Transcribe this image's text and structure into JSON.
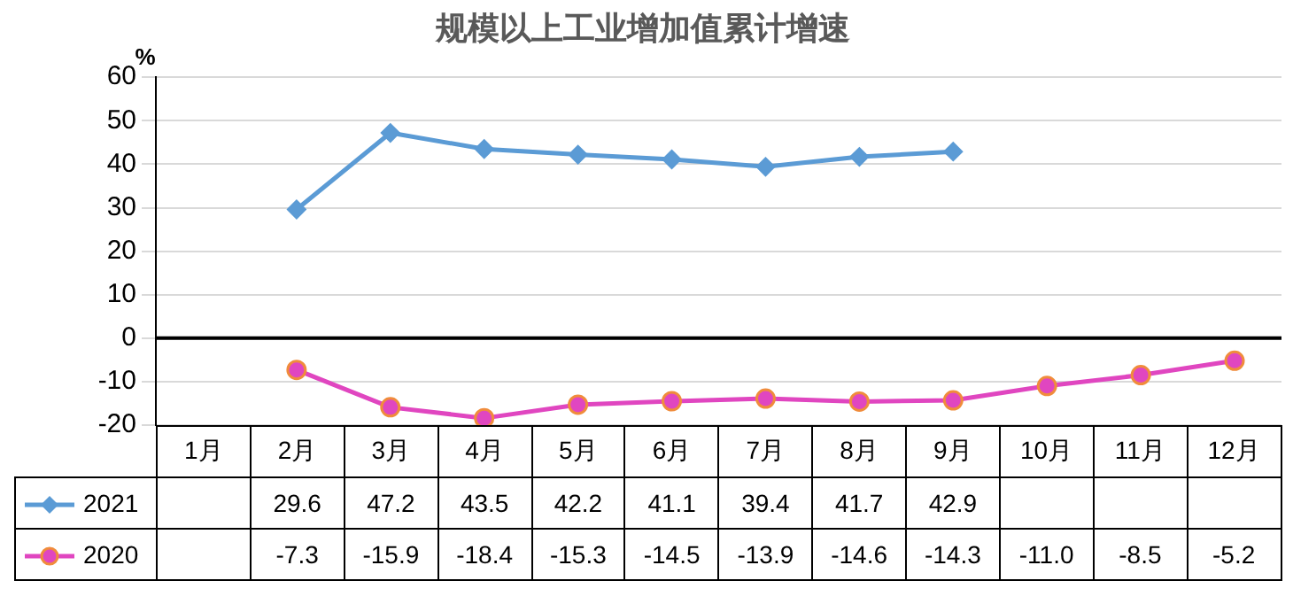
{
  "chart_data": {
    "type": "line",
    "title": "规模以上工业增加值累计增速",
    "ylabel": "%",
    "categories": [
      "1月",
      "2月",
      "3月",
      "4月",
      "5月",
      "6月",
      "7月",
      "8月",
      "9月",
      "10月",
      "11月",
      "12月"
    ],
    "series": [
      {
        "name": "2021",
        "color": "#5b9bd5",
        "marker": "diamond",
        "values": [
          null,
          29.6,
          47.2,
          43.5,
          42.2,
          41.1,
          39.4,
          41.7,
          42.9,
          null,
          null,
          null
        ],
        "value_labels": [
          null,
          "29.6",
          "47.2",
          "43.5",
          "42.2",
          "41.1",
          "39.4",
          "41.7",
          "42.9",
          null,
          null,
          null
        ]
      },
      {
        "name": "2020",
        "color": "#e046c0",
        "marker": "circle",
        "values": [
          null,
          -7.3,
          -15.9,
          -18.4,
          -15.3,
          -14.5,
          -13.9,
          -14.6,
          -14.3,
          -11.0,
          -8.5,
          -5.2
        ],
        "value_labels": [
          null,
          "-7.3",
          "-15.9",
          "-18.4",
          "-15.3",
          "-14.5",
          "-13.9",
          "-14.6",
          "-14.3",
          "-11.0",
          "-8.5",
          "-5.2"
        ]
      }
    ],
    "ylim": [
      -20,
      60
    ],
    "yticks": [
      -20,
      -10,
      0,
      10,
      20,
      30,
      40,
      50,
      60
    ],
    "grid": "y",
    "legend": "bottom left",
    "ref_lines": [
      {
        "axis": "y",
        "value": 0,
        "color": "#000000"
      }
    ]
  }
}
